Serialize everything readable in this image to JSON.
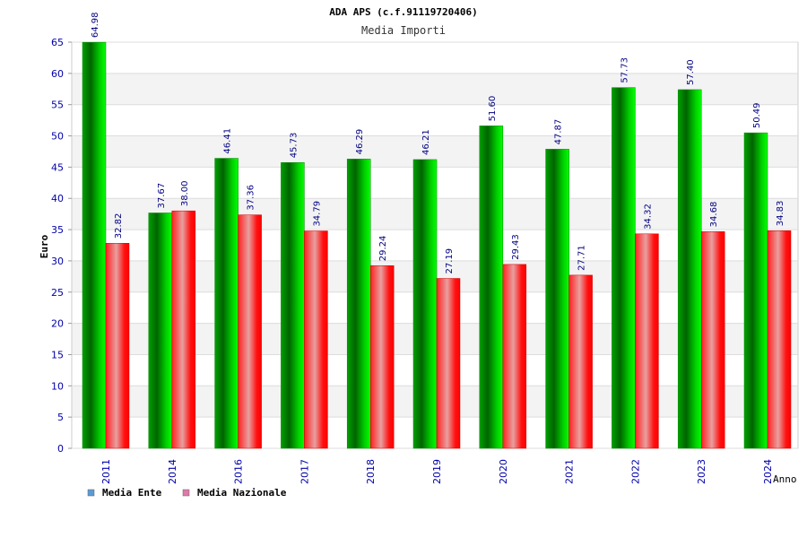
{
  "chart_data": {
    "type": "bar",
    "title": "ADA APS (c.f.91119720406)",
    "subtitle": "Media Importi",
    "xlabel": "Anno",
    "ylabel": "Euro",
    "ylim": [
      0,
      65
    ],
    "yticks": [
      0,
      5,
      10,
      15,
      20,
      25,
      30,
      35,
      40,
      45,
      50,
      55,
      60,
      65
    ],
    "grid": true,
    "legend_position": "bottom-left",
    "categories": [
      "2011",
      "2014",
      "2016",
      "2017",
      "2018",
      "2019",
      "2020",
      "2021",
      "2022",
      "2023",
      "2024"
    ],
    "series": [
      {
        "name": "Media Ente",
        "color": "#00cc00",
        "legend_color": "#5b9bd5",
        "values": [
          64.98,
          37.67,
          46.41,
          45.73,
          46.29,
          46.21,
          51.6,
          47.87,
          57.73,
          57.4,
          50.49
        ],
        "labels": [
          "64.98",
          "37.67",
          "46.41",
          "45.73",
          "46.29",
          "46.21",
          "51.60",
          "47.87",
          "57.73",
          "57.40",
          "50.49"
        ]
      },
      {
        "name": "Media Nazionale",
        "color": "#ee0000",
        "legend_color": "#e07aa8",
        "values": [
          32.82,
          38.0,
          37.36,
          34.79,
          29.24,
          27.19,
          29.43,
          27.71,
          34.32,
          34.68,
          34.83
        ],
        "labels": [
          "32.82",
          "38.00",
          "37.36",
          "34.79",
          "29.24",
          "27.19",
          "29.43",
          "27.71",
          "34.32",
          "34.68",
          "34.83"
        ]
      }
    ]
  }
}
